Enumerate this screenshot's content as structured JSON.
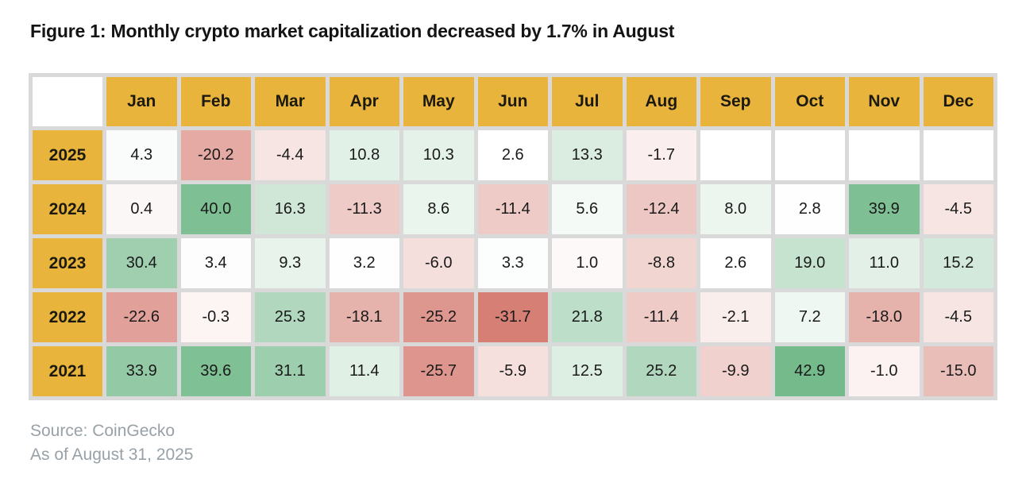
{
  "title": "Figure 1: Monthly crypto market capitalization decreased by 1.7% in August",
  "source": {
    "line1": "Source: CoinGecko",
    "line2": "As of August 31, 2025"
  },
  "colors": {
    "header_bg": "#E8B43C",
    "table_gap": "#D9D9D9",
    "cell_text": "#1A1A1A",
    "title_text": "#141414",
    "source_text": "#98A1A8"
  },
  "chart_data": {
    "type": "heatmap",
    "title": "Figure 1: Monthly crypto market capitalization decreased by 1.7% in August",
    "unit": "percent monthly change",
    "columns": [
      "Jan",
      "Feb",
      "Mar",
      "Apr",
      "May",
      "Jun",
      "Jul",
      "Aug",
      "Sep",
      "Oct",
      "Nov",
      "Dec"
    ],
    "rows": [
      {
        "year": "2025",
        "values": [
          4.3,
          -20.2,
          -4.4,
          10.8,
          10.3,
          2.6,
          13.3,
          -1.7,
          null,
          null,
          null,
          null
        ]
      },
      {
        "year": "2024",
        "values": [
          0.4,
          40.0,
          16.3,
          -11.3,
          8.6,
          -11.4,
          5.6,
          -12.4,
          8.0,
          2.8,
          39.9,
          -4.5
        ]
      },
      {
        "year": "2023",
        "values": [
          30.4,
          3.4,
          9.3,
          3.2,
          -6.0,
          3.3,
          1.0,
          -8.8,
          2.6,
          19.0,
          11.0,
          15.2
        ]
      },
      {
        "year": "2022",
        "values": [
          -22.6,
          -0.3,
          25.3,
          -18.1,
          -25.2,
          -31.7,
          21.8,
          -11.4,
          -2.1,
          7.2,
          -18.0,
          -4.5
        ]
      },
      {
        "year": "2021",
        "values": [
          33.9,
          39.6,
          31.1,
          11.4,
          -25.7,
          -5.9,
          12.5,
          25.2,
          -9.9,
          42.9,
          -1.0,
          -15.0
        ]
      }
    ],
    "colorscale": {
      "min": -31.7,
      "max": 42.9,
      "midpoint": 2.5,
      "negative_color": "#D67F75",
      "neutral_color": "#FFFFFF",
      "positive_color": "#74BA8B",
      "empty_color": "#FFFFFF"
    },
    "value_format": "one_decimal",
    "legend": "none",
    "grid": "cell-gaps"
  }
}
